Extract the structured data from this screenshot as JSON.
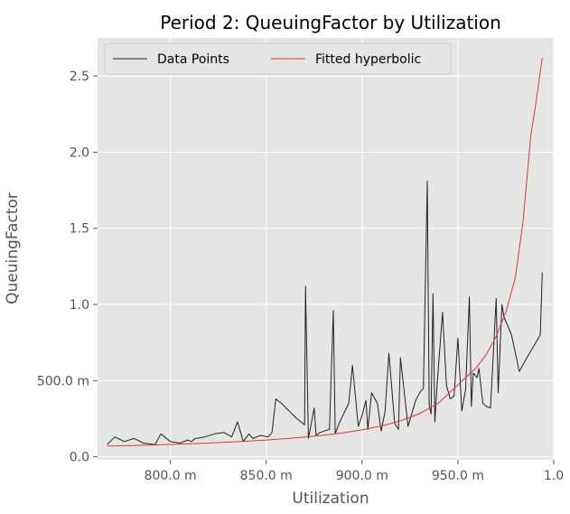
{
  "chart_data": {
    "type": "line",
    "title": "Period 2: QueuingFactor by Utilization",
    "xlabel": "Utilization",
    "ylabel": "QueuingFactor",
    "xlim": [
      0.762,
      1.0
    ],
    "ylim": [
      -0.02,
      2.75
    ],
    "x_ticks": [
      {
        "value": 0.8,
        "label": "800.0 m"
      },
      {
        "value": 0.85,
        "label": "850.0 m"
      },
      {
        "value": 0.9,
        "label": "900.0 m"
      },
      {
        "value": 0.95,
        "label": "950.0 m"
      },
      {
        "value": 1.0,
        "label": "1.0"
      }
    ],
    "y_ticks": [
      {
        "value": 0.0,
        "label": "0.0"
      },
      {
        "value": 0.5,
        "label": "500.0 m"
      },
      {
        "value": 1.0,
        "label": "1.0"
      },
      {
        "value": 1.5,
        "label": "1.5"
      },
      {
        "value": 2.0,
        "label": "2.0"
      },
      {
        "value": 2.5,
        "label": "2.5"
      }
    ],
    "grid": true,
    "legend_position": "top-left",
    "series": [
      {
        "name": "Data Points",
        "color": "#222222",
        "x": [
          0.767,
          0.771,
          0.776,
          0.781,
          0.786,
          0.792,
          0.795,
          0.8,
          0.805,
          0.809,
          0.811,
          0.813,
          0.818,
          0.823,
          0.828,
          0.832,
          0.835,
          0.838,
          0.841,
          0.843,
          0.847,
          0.851,
          0.853,
          0.855,
          0.858,
          0.862,
          0.866,
          0.87,
          0.8705,
          0.872,
          0.875,
          0.876,
          0.878,
          0.883,
          0.885,
          0.886,
          0.888,
          0.893,
          0.895,
          0.898,
          0.9,
          0.902,
          0.903,
          0.905,
          0.908,
          0.91,
          0.912,
          0.914,
          0.917,
          0.919,
          0.92,
          0.924,
          0.928,
          0.93,
          0.932,
          0.934,
          0.935,
          0.936,
          0.937,
          0.938,
          0.939,
          0.942,
          0.944,
          0.946,
          0.948,
          0.95,
          0.952,
          0.954,
          0.956,
          0.957,
          0.958,
          0.96,
          0.961,
          0.963,
          0.965,
          0.967,
          0.97,
          0.971,
          0.973,
          0.974,
          0.978,
          0.982,
          0.986,
          0.993,
          0.994
        ],
        "y": [
          0.08,
          0.13,
          0.1,
          0.12,
          0.09,
          0.08,
          0.15,
          0.1,
          0.09,
          0.11,
          0.1,
          0.12,
          0.13,
          0.15,
          0.16,
          0.13,
          0.23,
          0.1,
          0.15,
          0.12,
          0.14,
          0.13,
          0.16,
          0.38,
          0.35,
          0.3,
          0.25,
          0.21,
          1.12,
          0.12,
          0.32,
          0.14,
          0.16,
          0.18,
          0.96,
          0.15,
          0.22,
          0.35,
          0.6,
          0.2,
          0.27,
          0.37,
          0.18,
          0.42,
          0.35,
          0.17,
          0.3,
          0.68,
          0.22,
          0.18,
          0.65,
          0.2,
          0.37,
          0.42,
          0.45,
          1.81,
          0.34,
          0.28,
          1.07,
          0.23,
          0.45,
          0.95,
          0.47,
          0.38,
          0.4,
          0.78,
          0.3,
          0.44,
          1.05,
          0.33,
          0.55,
          0.52,
          0.58,
          0.35,
          0.33,
          0.32,
          1.04,
          0.42,
          1.0,
          0.92,
          0.8,
          0.56,
          0.65,
          0.8,
          1.21
        ]
      },
      {
        "name": "Fitted hyperbolic",
        "color": "#e8303a",
        "x": [
          0.767,
          0.78,
          0.79,
          0.8,
          0.81,
          0.82,
          0.83,
          0.84,
          0.85,
          0.86,
          0.87,
          0.88,
          0.89,
          0.9,
          0.91,
          0.92,
          0.93,
          0.94,
          0.95,
          0.96,
          0.965,
          0.97,
          0.975,
          0.98,
          0.984,
          0.988,
          0.991,
          0.994
        ],
        "y": [
          0.07,
          0.074,
          0.077,
          0.081,
          0.085,
          0.09,
          0.096,
          0.102,
          0.11,
          0.119,
          0.129,
          0.142,
          0.157,
          0.177,
          0.202,
          0.236,
          0.283,
          0.354,
          0.472,
          0.59,
          0.675,
          0.79,
          0.95,
          1.18,
          1.55,
          2.1,
          2.35,
          2.62
        ]
      }
    ]
  }
}
